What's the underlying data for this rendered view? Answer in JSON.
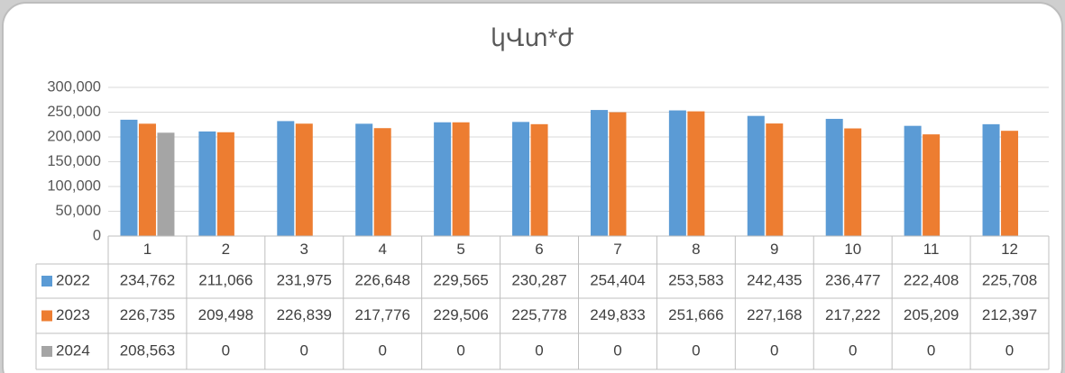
{
  "chart_data": {
    "type": "bar",
    "title": "կՎտ*ժ",
    "categories": [
      "1",
      "2",
      "3",
      "4",
      "5",
      "6",
      "7",
      "8",
      "9",
      "10",
      "11",
      "12"
    ],
    "series": [
      {
        "name": "2022",
        "color": "#5b9bd5",
        "values": [
          234762,
          211066,
          231975,
          226648,
          229565,
          230287,
          254404,
          253583,
          242435,
          236477,
          222408,
          225708
        ],
        "value_labels": [
          "234,762",
          "211,066",
          "231,975",
          "226,648",
          "229,565",
          "230,287",
          "254,404",
          "253,583",
          "242,435",
          "236,477",
          "222,408",
          "225,708"
        ]
      },
      {
        "name": "2023",
        "color": "#ed7d31",
        "values": [
          226735,
          209498,
          226839,
          217776,
          229506,
          225778,
          249833,
          251666,
          227168,
          217222,
          205209,
          212397
        ],
        "value_labels": [
          "226,735",
          "209,498",
          "226,839",
          "217,776",
          "229,506",
          "225,778",
          "249,833",
          "251,666",
          "227,168",
          "217,222",
          "205,209",
          "212,397"
        ]
      },
      {
        "name": "2024",
        "color": "#a5a5a5",
        "values": [
          208563,
          0,
          0,
          0,
          0,
          0,
          0,
          0,
          0,
          0,
          0,
          0
        ],
        "value_labels": [
          "208,563",
          "0",
          "0",
          "0",
          "0",
          "0",
          "0",
          "0",
          "0",
          "0",
          "0",
          "0"
        ]
      }
    ],
    "ylim": [
      0,
      300000
    ],
    "yticks": [
      0,
      {
        "value": 50000,
        "label": "50,000"
      },
      {
        "value": 100000,
        "label": "100,000"
      },
      {
        "value": 150000,
        "label": "150,000"
      },
      {
        "value": 200000,
        "label": "200,000"
      },
      {
        "value": 250000,
        "label": "250,000"
      },
      {
        "value": 300000,
        "label": "300,000"
      }
    ],
    "grid": true
  }
}
